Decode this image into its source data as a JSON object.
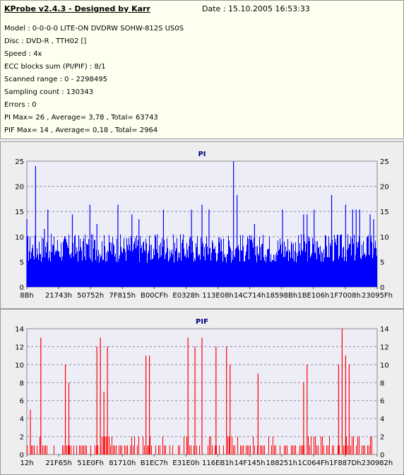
{
  "info": {
    "title": "KProbe v2.4.3 - Designed by Karr",
    "date": "Date : 15.10.2005 16:53:33",
    "lines": [
      "Model : 0-0-0-0 LITE-ON DVDRW SOHW-812S  US0S",
      "Disc : DVD-R , TTH02 []",
      "Speed : 4x",
      "ECC blocks sum (PI/PIF) : 8/1",
      "Scanned range : 0 - 2298495",
      "Sampling count : 130343",
      "Errors : 0",
      "PI Max= 26 , Average= 3,78 , Total= 63743",
      "PIF Max= 14 , Average= 0,18 , Total= 2964"
    ]
  },
  "chart_data": [
    {
      "type": "bar",
      "title": "PI",
      "color": "#0000ff",
      "ylim": [
        0,
        26
      ],
      "y_ticks": [
        "0",
        "5",
        "10",
        "15",
        "20",
        "25"
      ],
      "x_ticks": [
        "8Bh",
        "21743h",
        "50752h",
        "7F815h",
        "B00CFh",
        "E0328h",
        "113E08h",
        "14C714h",
        "18598Bh",
        "1BE106h",
        "1F7008h",
        "23095Fh"
      ],
      "x": [
        0.0,
        0.025,
        0.05,
        0.06,
        0.13,
        0.18,
        0.2,
        0.26,
        0.3,
        0.32,
        0.39,
        0.47,
        0.5,
        0.52,
        0.59,
        0.6,
        0.65,
        0.73,
        0.79,
        0.8,
        0.82,
        0.87,
        0.91,
        0.93,
        0.94,
        0.95,
        0.98,
        0.99
      ],
      "values": [
        14,
        25,
        12,
        16,
        15,
        17,
        13,
        17,
        15,
        14,
        16,
        16,
        17,
        16,
        26,
        19,
        13,
        16,
        15,
        15,
        16,
        19,
        17,
        16,
        16,
        16,
        15,
        14
      ],
      "baseline_range": [
        5,
        11
      ]
    },
    {
      "type": "bar",
      "title": "PIF",
      "color": "#ff0000",
      "ylim": [
        0,
        14
      ],
      "y_ticks": [
        "0",
        "2",
        "4",
        "6",
        "8",
        "10",
        "12",
        "14"
      ],
      "x_ticks": [
        "12h",
        "21F65h",
        "51E0Fh",
        "81710h",
        "B1EC7h",
        "E31E0h",
        "116EB1h",
        "14F145h",
        "188251h",
        "1C064Fh",
        "1F887Dh",
        "230982h"
      ],
      "x": [
        0.01,
        0.04,
        0.11,
        0.12,
        0.2,
        0.21,
        0.22,
        0.23,
        0.34,
        0.35,
        0.46,
        0.48,
        0.5,
        0.54,
        0.57,
        0.58,
        0.66,
        0.79,
        0.8,
        0.89,
        0.9,
        0.91,
        0.92
      ],
      "values": [
        5,
        13,
        10,
        8,
        12,
        13,
        7,
        12,
        11,
        11,
        13,
        12,
        13,
        12,
        12,
        10,
        9,
        8,
        10,
        10,
        14,
        11,
        10
      ]
    }
  ]
}
